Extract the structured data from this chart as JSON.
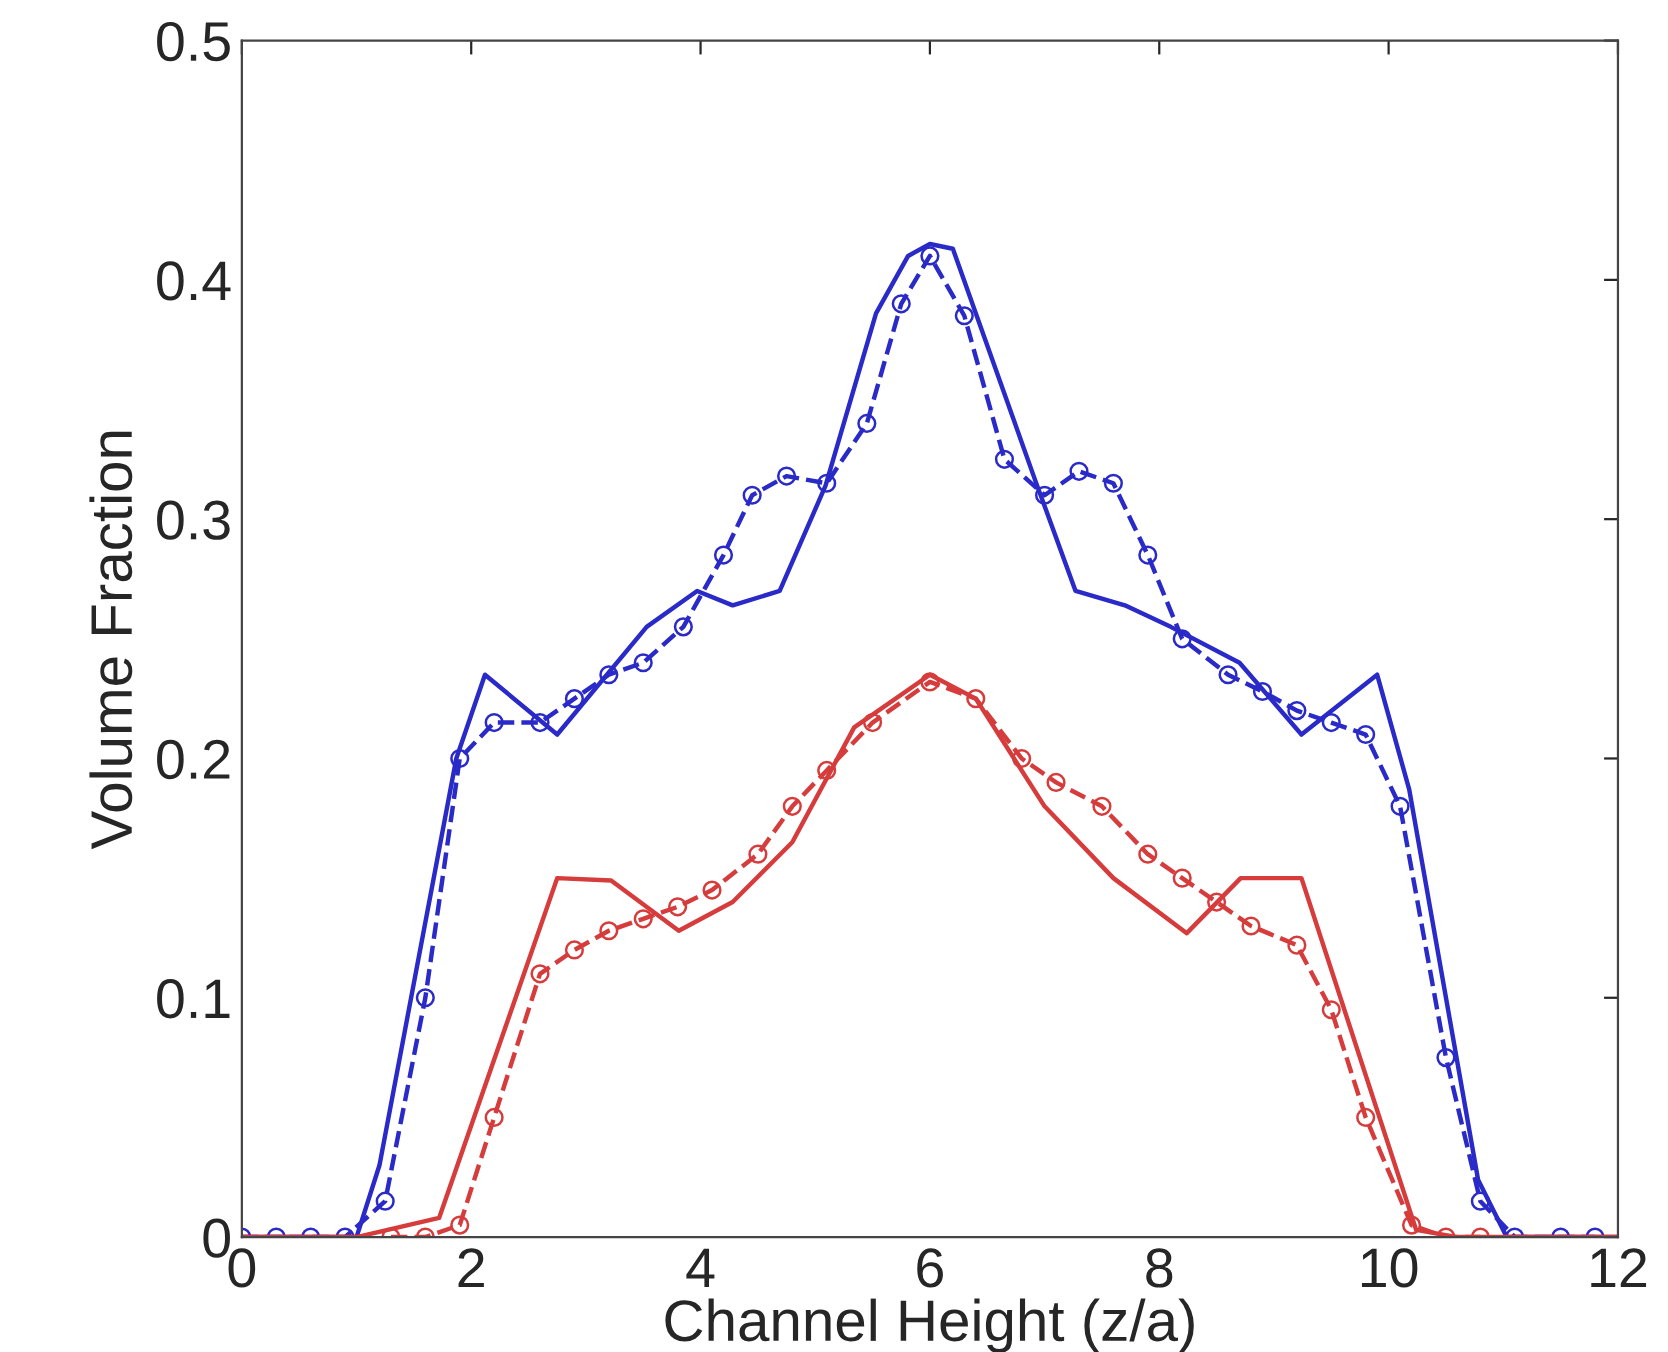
{
  "chart_data": {
    "type": "line",
    "xlabel": "Channel Height (z/a)",
    "ylabel": "Volume Fraction",
    "xlim": [
      0,
      12
    ],
    "ylim": [
      0,
      0.5
    ],
    "xticks": [
      0,
      2,
      4,
      6,
      8,
      10,
      12
    ],
    "yticks": [
      0,
      0.1,
      0.2,
      0.3,
      0.4,
      0.5
    ],
    "grid": false,
    "legend": false,
    "series": [
      {
        "color": "#2a2ac8",
        "line_style": "solid",
        "marker": "none",
        "x": [
          0,
          1.0,
          1.2,
          1.87,
          2.12,
          2.75,
          3.53,
          3.97,
          4.28,
          4.69,
          5.09,
          5.53,
          5.81,
          6.0,
          6.2,
          6.92,
          7.27,
          7.7,
          8.1,
          8.7,
          9.24,
          9.9,
          10.18,
          10.78,
          11.03,
          12
        ],
        "values": [
          0,
          0,
          0.03,
          0.2,
          0.235,
          0.21,
          0.255,
          0.27,
          0.264,
          0.27,
          0.314,
          0.386,
          0.41,
          0.415,
          0.413,
          0.316,
          0.27,
          0.264,
          0.255,
          0.24,
          0.21,
          0.235,
          0.187,
          0.024,
          0,
          0
        ]
      },
      {
        "color": "#2a2ac8",
        "line_style": "dashed",
        "marker": "circle",
        "x": [
          0,
          0.3,
          0.6,
          0.9,
          1.25,
          1.6,
          1.9,
          2.2,
          2.6,
          2.9,
          3.2,
          3.5,
          3.85,
          4.2,
          4.45,
          4.75,
          5.1,
          5.45,
          5.75,
          6.0,
          6.3,
          6.65,
          7.0,
          7.3,
          7.6,
          7.9,
          8.2,
          8.6,
          8.9,
          9.2,
          9.5,
          9.8,
          10.1,
          10.5,
          10.8,
          11.1,
          11.5,
          11.8
        ],
        "values": [
          0,
          0,
          0,
          0,
          0.015,
          0.1,
          0.2,
          0.215,
          0.215,
          0.225,
          0.235,
          0.24,
          0.255,
          0.285,
          0.31,
          0.318,
          0.315,
          0.34,
          0.39,
          0.41,
          0.385,
          0.325,
          0.31,
          0.32,
          0.315,
          0.285,
          0.25,
          0.235,
          0.228,
          0.22,
          0.215,
          0.21,
          0.18,
          0.075,
          0.015,
          0,
          0,
          0
        ]
      },
      {
        "color": "#d63c3c",
        "line_style": "solid",
        "marker": "none",
        "x": [
          0,
          1.0,
          1.72,
          2.75,
          3.22,
          3.81,
          4.28,
          4.8,
          5.34,
          6.0,
          6.4,
          7.0,
          7.6,
          8.24,
          8.71,
          9.24,
          10.24,
          10.6,
          12
        ],
        "values": [
          0,
          0,
          0.008,
          0.15,
          0.149,
          0.128,
          0.14,
          0.165,
          0.213,
          0.235,
          0.225,
          0.18,
          0.15,
          0.127,
          0.15,
          0.15,
          0.003,
          0,
          0
        ]
      },
      {
        "color": "#d63c3c",
        "line_style": "dashed",
        "marker": "circle",
        "x": [
          1.3,
          1.6,
          1.9,
          2.2,
          2.6,
          2.9,
          3.2,
          3.5,
          3.8,
          4.1,
          4.5,
          4.8,
          5.1,
          5.5,
          6.0,
          6.4,
          6.8,
          7.1,
          7.5,
          7.9,
          8.2,
          8.5,
          8.8,
          9.2,
          9.5,
          9.8,
          10.2,
          10.5,
          10.8
        ],
        "values": [
          0,
          0,
          0.005,
          0.05,
          0.11,
          0.12,
          0.128,
          0.133,
          0.138,
          0.145,
          0.16,
          0.18,
          0.195,
          0.215,
          0.232,
          0.225,
          0.2,
          0.19,
          0.18,
          0.16,
          0.15,
          0.14,
          0.13,
          0.122,
          0.095,
          0.05,
          0.005,
          0,
          0
        ]
      }
    ]
  }
}
